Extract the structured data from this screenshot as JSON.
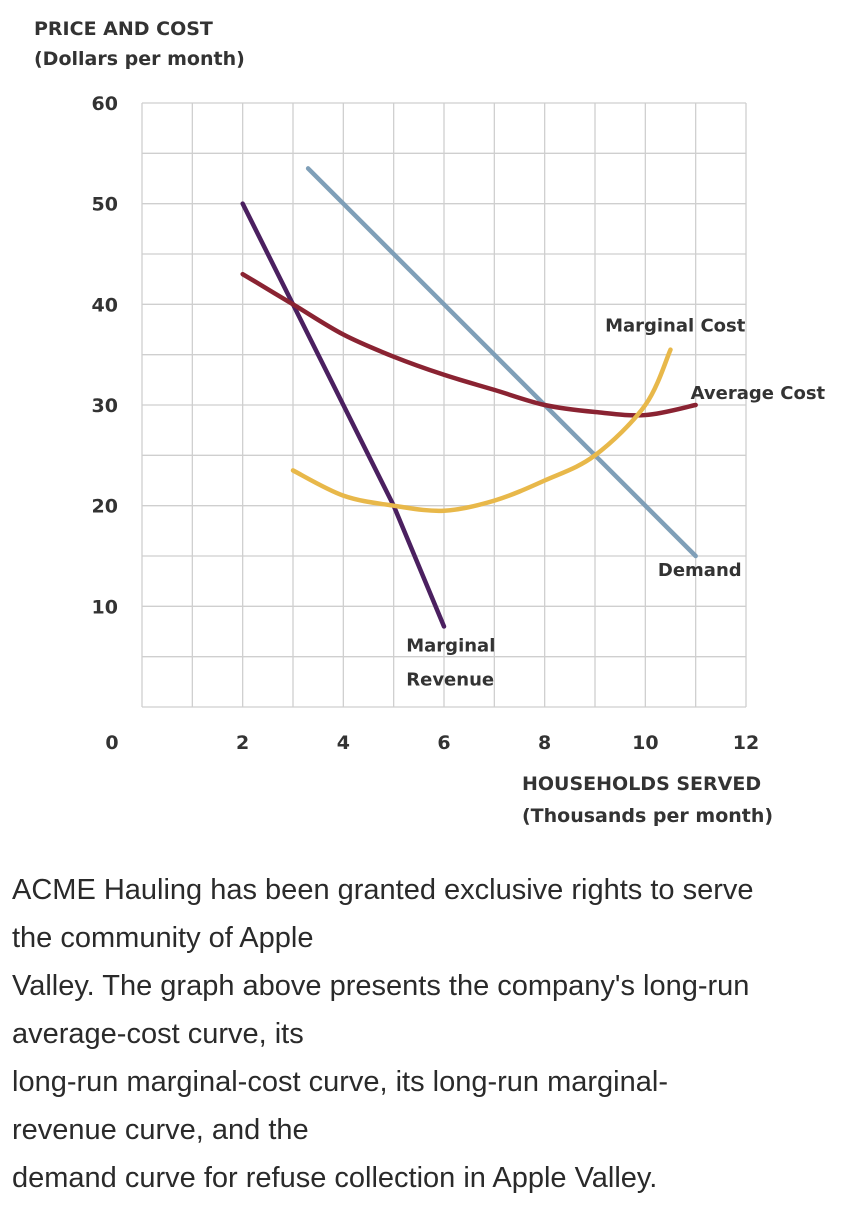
{
  "chart_data": {
    "type": "line",
    "ylabel": [
      "PRICE AND COST",
      "(Dollars per month)"
    ],
    "xlabel": [
      "HOUSEHOLDS SERVED",
      "(Thousands per month)"
    ],
    "xlim": [
      0,
      12
    ],
    "ylim": [
      0,
      60
    ],
    "x_ticks": [
      "0",
      "2",
      "4",
      "6",
      "8",
      "10",
      "12"
    ],
    "y_ticks": [
      "60",
      "50",
      "40",
      "30",
      "20",
      "10"
    ],
    "grid": true,
    "series": [
      {
        "name": "Marginal Revenue",
        "label_lines": [
          "Marginal",
          "Revenue"
        ],
        "color": "#4b2060",
        "points": [
          [
            2,
            50
          ],
          [
            3,
            40
          ],
          [
            4,
            30
          ],
          [
            5,
            20
          ],
          [
            6,
            8
          ]
        ]
      },
      {
        "name": "Demand",
        "label_lines": [
          "Demand"
        ],
        "color": "#7f9fb8",
        "points": [
          [
            3.3,
            53.5
          ],
          [
            6,
            40
          ],
          [
            8,
            30
          ],
          [
            9,
            25
          ],
          [
            11,
            15
          ]
        ]
      },
      {
        "name": "Average Cost",
        "label_lines": [
          "Average Cost"
        ],
        "color": "#8a2332",
        "points": [
          [
            2,
            43
          ],
          [
            3,
            40
          ],
          [
            4,
            37
          ],
          [
            5,
            34.8
          ],
          [
            6,
            33
          ],
          [
            7,
            31.5
          ],
          [
            8,
            30
          ],
          [
            9,
            29.3
          ],
          [
            10,
            29
          ],
          [
            11,
            30
          ]
        ]
      },
      {
        "name": "Marginal Cost",
        "label_lines": [
          "Marginal Cost"
        ],
        "color": "#e8b84a",
        "points": [
          [
            3,
            23.5
          ],
          [
            4,
            21
          ],
          [
            5,
            20
          ],
          [
            6,
            19.5
          ],
          [
            7,
            20.5
          ],
          [
            8,
            22.5
          ],
          [
            9,
            25
          ],
          [
            10,
            30
          ],
          [
            10.5,
            35.5
          ]
        ]
      }
    ]
  },
  "question": {
    "lines": [
      "ACME Hauling has been granted exclusive rights to serve",
      "the community of Apple",
      "Valley. The graph above presents the company's long-run",
      "average-cost curve, its",
      "long-run marginal-cost curve, its long-run marginal-",
      "revenue curve, and the",
      "demand curve for refuse collection in Apple Valley."
    ]
  }
}
